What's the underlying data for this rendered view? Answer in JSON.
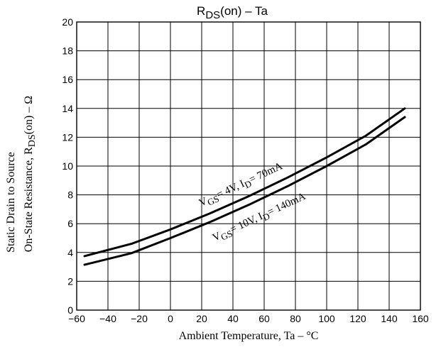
{
  "chart_data": {
    "type": "line",
    "title_main": "R",
    "title_sub": "DS",
    "title_rest": "(on)  –  Ta",
    "xlabel": "Ambient Temperature, Ta  –  °C",
    "ylabel_line1": "Static Drain to Source",
    "ylabel_line2_main": "On-State Resistance, R",
    "ylabel_line2_sub": "DS",
    "ylabel_line2_rest": "(on)  –  Ω",
    "xlim": [
      -60,
      160
    ],
    "ylim": [
      0,
      20
    ],
    "x_ticks": [
      -60,
      -40,
      -20,
      0,
      20,
      40,
      60,
      80,
      100,
      120,
      140,
      160
    ],
    "x_tick_labels": [
      "−60",
      "−40",
      "−20",
      "0",
      "20",
      "40",
      "60",
      "80",
      "100",
      "120",
      "140",
      "160"
    ],
    "y_ticks": [
      0,
      2,
      4,
      6,
      8,
      10,
      12,
      14,
      16,
      18,
      20
    ],
    "y_tick_labels": [
      "0",
      "2",
      "4",
      "6",
      "8",
      "10",
      "12",
      "14",
      "16",
      "18",
      "20"
    ],
    "grid": true,
    "series": [
      {
        "label_parts": [
          "V",
          "GS",
          "= 4V, I",
          "D",
          "= 70mA"
        ],
        "x": [
          -55,
          -25,
          0,
          25,
          50,
          75,
          100,
          125,
          150
        ],
        "y": [
          3.75,
          4.6,
          5.6,
          6.7,
          7.9,
          9.2,
          10.6,
          12.1,
          14.0
        ]
      },
      {
        "label_parts": [
          "V",
          "GS",
          "= 10V, I",
          "D",
          "= 140mA"
        ],
        "x": [
          -55,
          -25,
          0,
          25,
          50,
          75,
          100,
          125,
          150
        ],
        "y": [
          3.15,
          3.95,
          5.0,
          6.1,
          7.3,
          8.6,
          10.0,
          11.5,
          13.4
        ]
      }
    ]
  }
}
